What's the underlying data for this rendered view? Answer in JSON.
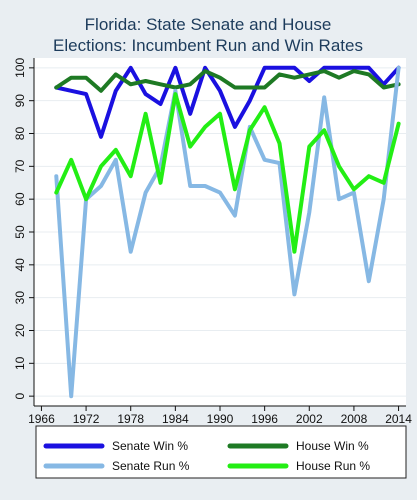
{
  "chart_data": {
    "type": "line",
    "title_lines": [
      "Florida: State Senate and House",
      "Elections: Incumbent Run and Win Rates"
    ],
    "xlabel": "",
    "ylabel": "",
    "x_ticks": [
      1966,
      1972,
      1978,
      1984,
      1990,
      1996,
      2002,
      2008,
      2014
    ],
    "y_ticks": [
      0,
      10,
      20,
      30,
      40,
      50,
      60,
      70,
      80,
      90,
      100
    ],
    "xlim": [
      1965,
      2015
    ],
    "ylim": [
      -3,
      103
    ],
    "grid": true,
    "legend_position": "bottom",
    "x": [
      1968,
      1970,
      1972,
      1974,
      1976,
      1978,
      1980,
      1982,
      1984,
      1986,
      1988,
      1990,
      1992,
      1994,
      1996,
      1998,
      2000,
      2002,
      2004,
      2006,
      2008,
      2010,
      2012,
      2014
    ],
    "series": [
      {
        "name": "Senate Win %",
        "color": "#1a10e0",
        "width": 4,
        "values": [
          94,
          93,
          92,
          79,
          93,
          100,
          92,
          89,
          100,
          86,
          100,
          93,
          82,
          90,
          100,
          100,
          100,
          96,
          100,
          100,
          100,
          100,
          95,
          100
        ]
      },
      {
        "name": "House Win %",
        "color": "#1e7a24",
        "width": 4,
        "values": [
          94,
          97,
          97,
          93,
          98,
          95,
          96,
          95,
          94,
          95,
          99,
          97,
          94,
          94,
          94,
          98,
          97,
          98,
          99,
          97,
          99,
          98,
          94,
          95
        ]
      },
      {
        "name": "Senate Run %",
        "color": "#86b8e4",
        "width": 4,
        "values": [
          67,
          0,
          60,
          64,
          72,
          44,
          62,
          70,
          93,
          64,
          64,
          62,
          55,
          82,
          72,
          71,
          31,
          56,
          91,
          60,
          62,
          35,
          60,
          100
        ]
      },
      {
        "name": "House Run %",
        "color": "#23ee14",
        "width": 4,
        "values": [
          62,
          72,
          60,
          70,
          75,
          67,
          86,
          65,
          92,
          76,
          82,
          86,
          63,
          81,
          88,
          77,
          44,
          76,
          81,
          70,
          63,
          67,
          65,
          83
        ]
      }
    ],
    "legend_rows": [
      [
        "Senate Win %",
        "House Win %"
      ],
      [
        "Senate Run %",
        "House Run %"
      ]
    ]
  }
}
